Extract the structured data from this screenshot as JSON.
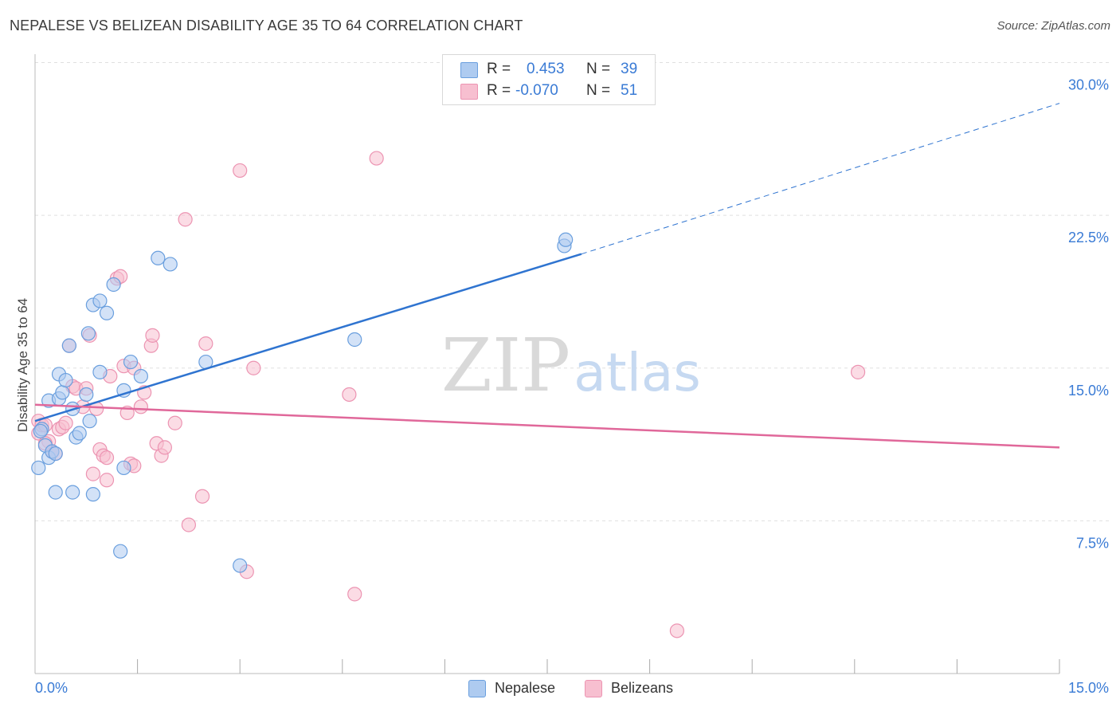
{
  "title": "NEPALESE VS BELIZEAN DISABILITY AGE 35 TO 64 CORRELATION CHART",
  "source": "Source: ZipAtlas.com",
  "watermark": {
    "zip": "ZIP",
    "atlas": "atlas"
  },
  "legend": {
    "rows": [
      {
        "r_label": "R =",
        "r_value": "0.453",
        "n_label": "N =",
        "n_value": "39"
      },
      {
        "r_label": "R =",
        "r_value": "-0.070",
        "n_label": "N =",
        "n_value": "51"
      }
    ]
  },
  "colors": {
    "blue_fill": "#aecbf0",
    "blue_stroke": "#6a9fde",
    "blue_line": "#2f74d0",
    "pink_fill": "#f7bfd0",
    "pink_stroke": "#ec94b2",
    "pink_line": "#e0689a",
    "axis_text": "#3a7bd5",
    "grid": "#e0e0e0"
  },
  "chart_data": {
    "type": "scatter",
    "title": "NEPALESE VS BELIZEAN DISABILITY AGE 35 TO 64 CORRELATION CHART",
    "xlabel": "",
    "ylabel": "Disability Age 35 to 64",
    "xlim": [
      0,
      15
    ],
    "ylim": [
      0,
      31
    ],
    "x_tick_labels": [
      {
        "value": 0,
        "label": "0.0%"
      },
      {
        "value": 15,
        "label": "15.0%"
      }
    ],
    "y_tick_labels": [
      {
        "value": 7.5,
        "label": "7.5%"
      },
      {
        "value": 15,
        "label": "15.0%"
      },
      {
        "value": 22.5,
        "label": "22.5%"
      },
      {
        "value": 30,
        "label": "30.0%"
      }
    ],
    "x_minor_ticks": [
      1.5,
      3,
      4.5,
      6,
      7.5,
      9,
      10.5,
      12,
      13.5,
      15
    ],
    "series": [
      {
        "name": "Nepalese",
        "color": "blue",
        "trend": {
          "x": [
            0,
            8.0
          ],
          "y": [
            12.4,
            20.6
          ],
          "dashed_to": [
            15,
            28.0
          ]
        },
        "points": [
          {
            "x": 0.05,
            "y": 10.1
          },
          {
            "x": 0.1,
            "y": 12.0
          },
          {
            "x": 0.15,
            "y": 11.2
          },
          {
            "x": 0.2,
            "y": 10.6
          },
          {
            "x": 0.2,
            "y": 13.4
          },
          {
            "x": 0.25,
            "y": 10.9
          },
          {
            "x": 0.3,
            "y": 8.9
          },
          {
            "x": 0.35,
            "y": 13.5
          },
          {
            "x": 0.35,
            "y": 14.7
          },
          {
            "x": 0.4,
            "y": 13.8
          },
          {
            "x": 0.45,
            "y": 14.4
          },
          {
            "x": 0.5,
            "y": 16.1
          },
          {
            "x": 0.55,
            "y": 13.0
          },
          {
            "x": 0.55,
            "y": 8.9
          },
          {
            "x": 0.6,
            "y": 11.6
          },
          {
            "x": 0.65,
            "y": 11.8
          },
          {
            "x": 0.75,
            "y": 13.7
          },
          {
            "x": 0.78,
            "y": 16.7
          },
          {
            "x": 0.8,
            "y": 12.4
          },
          {
            "x": 0.85,
            "y": 8.8
          },
          {
            "x": 0.85,
            "y": 18.1
          },
          {
            "x": 0.95,
            "y": 14.8
          },
          {
            "x": 0.95,
            "y": 18.3
          },
          {
            "x": 1.05,
            "y": 17.7
          },
          {
            "x": 1.15,
            "y": 19.1
          },
          {
            "x": 1.25,
            "y": 6.0
          },
          {
            "x": 1.3,
            "y": 13.9
          },
          {
            "x": 1.3,
            "y": 10.1
          },
          {
            "x": 1.4,
            "y": 15.3
          },
          {
            "x": 1.55,
            "y": 14.6
          },
          {
            "x": 1.8,
            "y": 20.4
          },
          {
            "x": 1.98,
            "y": 20.1
          },
          {
            "x": 2.5,
            "y": 15.3
          },
          {
            "x": 3.0,
            "y": 5.3
          },
          {
            "x": 4.68,
            "y": 16.4
          },
          {
            "x": 7.75,
            "y": 21.0
          },
          {
            "x": 7.77,
            "y": 21.3
          },
          {
            "x": 0.08,
            "y": 11.9
          },
          {
            "x": 0.3,
            "y": 10.8
          }
        ]
      },
      {
        "name": "Belizeans",
        "color": "pink",
        "trend": {
          "x": [
            0,
            15
          ],
          "y": [
            13.2,
            11.1
          ]
        },
        "points": [
          {
            "x": 0.05,
            "y": 12.4
          },
          {
            "x": 0.05,
            "y": 11.8
          },
          {
            "x": 0.1,
            "y": 12.2
          },
          {
            "x": 0.15,
            "y": 12.2
          },
          {
            "x": 0.2,
            "y": 11.4
          },
          {
            "x": 0.25,
            "y": 10.9
          },
          {
            "x": 0.3,
            "y": 10.8
          },
          {
            "x": 0.35,
            "y": 12.0
          },
          {
            "x": 0.4,
            "y": 12.1
          },
          {
            "x": 0.45,
            "y": 12.3
          },
          {
            "x": 0.5,
            "y": 16.1
          },
          {
            "x": 0.55,
            "y": 14.1
          },
          {
            "x": 0.6,
            "y": 14.0
          },
          {
            "x": 0.7,
            "y": 13.1
          },
          {
            "x": 0.75,
            "y": 14.0
          },
          {
            "x": 0.8,
            "y": 16.6
          },
          {
            "x": 0.85,
            "y": 9.8
          },
          {
            "x": 0.9,
            "y": 13.0
          },
          {
            "x": 0.95,
            "y": 11.0
          },
          {
            "x": 1.0,
            "y": 10.7
          },
          {
            "x": 1.05,
            "y": 9.5
          },
          {
            "x": 1.05,
            "y": 10.6
          },
          {
            "x": 1.1,
            "y": 14.6
          },
          {
            "x": 1.2,
            "y": 19.4
          },
          {
            "x": 1.25,
            "y": 19.5
          },
          {
            "x": 1.3,
            "y": 15.1
          },
          {
            "x": 1.35,
            "y": 12.8
          },
          {
            "x": 1.4,
            "y": 10.3
          },
          {
            "x": 1.45,
            "y": 10.2
          },
          {
            "x": 1.45,
            "y": 15.0
          },
          {
            "x": 1.55,
            "y": 13.1
          },
          {
            "x": 1.6,
            "y": 13.8
          },
          {
            "x": 1.7,
            "y": 16.1
          },
          {
            "x": 1.72,
            "y": 16.6
          },
          {
            "x": 1.78,
            "y": 11.3
          },
          {
            "x": 1.85,
            "y": 10.7
          },
          {
            "x": 1.9,
            "y": 11.1
          },
          {
            "x": 2.05,
            "y": 12.3
          },
          {
            "x": 2.2,
            "y": 22.3
          },
          {
            "x": 2.25,
            "y": 7.3
          },
          {
            "x": 2.45,
            "y": 8.7
          },
          {
            "x": 2.5,
            "y": 16.2
          },
          {
            "x": 3.0,
            "y": 24.7
          },
          {
            "x": 3.1,
            "y": 5.0
          },
          {
            "x": 3.2,
            "y": 15.0
          },
          {
            "x": 4.6,
            "y": 13.7
          },
          {
            "x": 4.68,
            "y": 3.9
          },
          {
            "x": 5.0,
            "y": 25.3
          },
          {
            "x": 9.4,
            "y": 2.1
          },
          {
            "x": 12.05,
            "y": 14.8
          },
          {
            "x": 0.15,
            "y": 11.3
          }
        ]
      }
    ],
    "legend": [
      {
        "name": "Nepalese",
        "r": 0.453,
        "n": 39
      },
      {
        "name": "Belizeans",
        "r": -0.07,
        "n": 51
      }
    ]
  }
}
